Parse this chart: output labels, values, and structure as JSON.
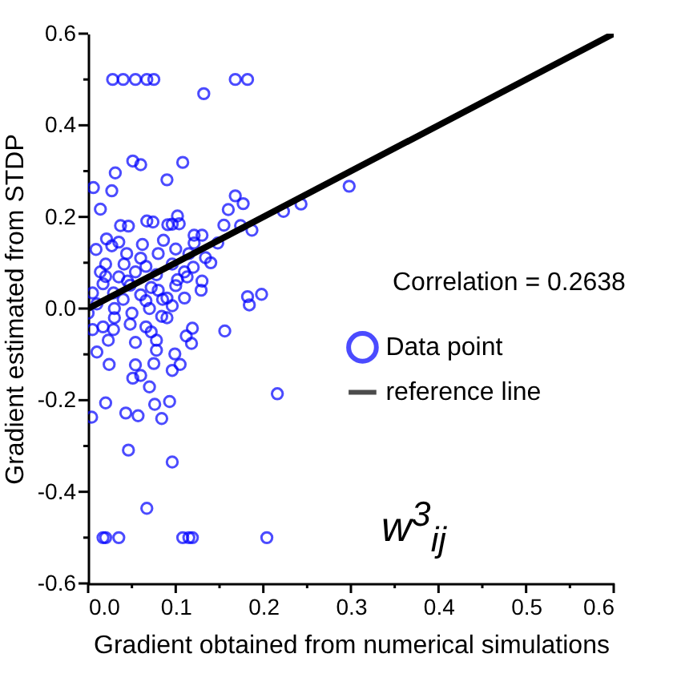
{
  "chart_data": {
    "type": "scatter",
    "xlabel": "Gradient obtained from numerical simulations",
    "ylabel": "Gradient estimated from STDP",
    "xlim": [
      0,
      0.6
    ],
    "ylim": [
      -0.6,
      0.6
    ],
    "xticks": [
      {
        "value": 0,
        "label": "0.0"
      },
      {
        "value": 0.05,
        "label": null
      },
      0.1,
      {
        "value": 0.15,
        "label": null
      },
      0.2,
      {
        "value": 0.25,
        "label": null
      },
      0.3,
      {
        "value": 0.35,
        "label": null
      },
      0.4,
      {
        "value": 0.45,
        "label": null
      },
      0.5,
      {
        "value": 0.55,
        "label": null
      },
      0.6
    ],
    "yticks": [
      -0.6,
      {
        "value": -0.5,
        "label": null
      },
      -0.4,
      {
        "value": -0.3,
        "label": null
      },
      -0.2,
      {
        "value": -0.1,
        "label": null
      },
      {
        "value": 0,
        "label": "0.0"
      },
      {
        "value": 0.1,
        "label": null
      },
      0.2,
      {
        "value": 0.3,
        "label": null
      },
      0.4,
      {
        "value": 0.5,
        "label": null
      },
      0.6
    ],
    "grid": false,
    "legend": "right",
    "annotations": [
      "Correlation = 0.2638",
      "w$^{3}$$_{ij}$"
    ],
    "series": [
      {
        "name": "Data point",
        "color": "#0000ff",
        "marker": "circle",
        "x": [
          0.028,
          0.04,
          0.054,
          0.067,
          0.075,
          0.168,
          0.182,
          0.132,
          0.051,
          0.06,
          0.108,
          0.031,
          0.09,
          0.006,
          0.027,
          0.014,
          0.168,
          0.177,
          0.16,
          0.102,
          0.037,
          0.046,
          0.067,
          0.074,
          0.091,
          0.096,
          0.104,
          0.155,
          0.174,
          0.187,
          0.223,
          0.243,
          0.298,
          0.121,
          0.13,
          0.009,
          0.021,
          0.027,
          0.035,
          0.062,
          0.086,
          0.121,
          0.148,
          0.134,
          0.115,
          0.044,
          0.02,
          0.041,
          0.066,
          0.096,
          0.014,
          0.035,
          0.054,
          0.078,
          0.102,
          0.017,
          0.048,
          0.072,
          0.113,
          0.005,
          0.029,
          0.066,
          0.09,
          0.129,
          0.182,
          0.198,
          0.11,
          0.184,
          0.005,
          0.017,
          0.029,
          0.048,
          0.066,
          0.084,
          0.096,
          0.072,
          0.023,
          0.054,
          0.078,
          0.119,
          0.112,
          0.118,
          0.156,
          0.01,
          0.078,
          0.099,
          0.024,
          0.054,
          0.075,
          0.105,
          0.096,
          0.051,
          0.06,
          0.07,
          0.216,
          0.02,
          0.076,
          0.093,
          0.004,
          0.043,
          0.057,
          0.084,
          0.046,
          0.096,
          0.067,
          0.017,
          0.02,
          0.035,
          0.108,
          0.115,
          0.119,
          0.204,
          0.01,
          0.03,
          0.04,
          0.06,
          0.08,
          0.1,
          0.05,
          0.07,
          0.09,
          0.11,
          0.12,
          0.02,
          0.06,
          0.08,
          0.1,
          0.03,
          0.0,
          0.13,
          0.14,
          0.045,
          0.085
        ],
        "values": [
          0.5,
          0.5,
          0.5,
          0.5,
          0.5,
          0.5,
          0.5,
          0.469,
          0.322,
          0.314,
          0.319,
          0.296,
          0.281,
          0.264,
          0.257,
          0.217,
          0.246,
          0.229,
          0.216,
          0.202,
          0.181,
          0.18,
          0.191,
          0.189,
          0.183,
          0.184,
          0.185,
          0.182,
          0.181,
          0.171,
          0.212,
          0.228,
          0.267,
          0.16,
          0.16,
          0.129,
          0.152,
          0.137,
          0.145,
          0.14,
          0.149,
          0.143,
          0.143,
          0.111,
          0.12,
          0.12,
          0.097,
          0.097,
          0.092,
          0.097,
          0.08,
          0.069,
          0.08,
          0.074,
          0.063,
          0.054,
          0.051,
          0.046,
          0.069,
          0.034,
          0.034,
          0.017,
          0.023,
          0.04,
          0.026,
          0.031,
          0.023,
          0.008,
          -0.046,
          -0.04,
          -0.046,
          -0.034,
          -0.04,
          -0.017,
          0.006,
          -0.051,
          -0.069,
          -0.074,
          -0.069,
          -0.043,
          -0.06,
          -0.076,
          -0.049,
          -0.095,
          -0.091,
          -0.099,
          -0.122,
          -0.123,
          -0.12,
          -0.122,
          -0.135,
          -0.152,
          -0.146,
          -0.171,
          -0.186,
          -0.206,
          -0.209,
          -0.203,
          -0.237,
          -0.228,
          -0.234,
          -0.24,
          -0.309,
          -0.335,
          -0.436,
          -0.5,
          -0.5,
          -0.5,
          -0.5,
          -0.5,
          -0.5,
          -0.5,
          0.01,
          0.0,
          0.02,
          0.03,
          0.04,
          0.05,
          -0.01,
          0.0,
          -0.02,
          0.08,
          0.09,
          0.07,
          0.11,
          0.12,
          0.13,
          -0.02,
          -0.01,
          0.06,
          0.1,
          0.06,
          0.02
        ]
      },
      {
        "name": "reference line",
        "color": "#000000",
        "type": "line",
        "marker": "none",
        "x": [
          0,
          0.6
        ],
        "values": [
          0,
          0.6
        ]
      }
    ]
  }
}
